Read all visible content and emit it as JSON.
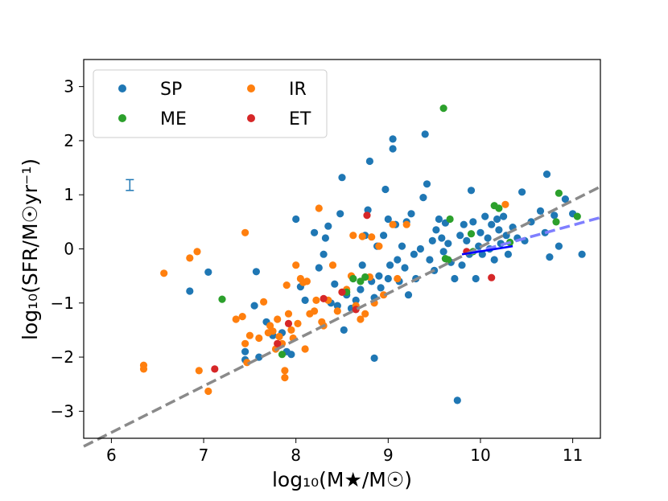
{
  "chart_data": {
    "type": "scatter",
    "xlabel": "log₁₀(M★/M☉)",
    "ylabel": "log₁₀(SFR/M☉yr⁻¹)",
    "xlim": [
      5.7,
      11.3
    ],
    "ylim": [
      -3.5,
      3.5
    ],
    "xticks": [
      6,
      7,
      8,
      9,
      10,
      11
    ],
    "yticks": [
      -3,
      -2,
      -1,
      0,
      1,
      2,
      3
    ],
    "grid": false,
    "legend_position": "top-left",
    "series": [
      {
        "name": "SP",
        "color": "#1f77b4",
        "points": [
          [
            6.85,
            -0.78
          ],
          [
            7.05,
            -0.43
          ],
          [
            7.45,
            -1.9
          ],
          [
            7.45,
            -2.05
          ],
          [
            7.55,
            -1.05
          ],
          [
            7.57,
            -0.42
          ],
          [
            7.6,
            -2.0
          ],
          [
            7.68,
            -1.35
          ],
          [
            7.75,
            -1.6
          ],
          [
            7.85,
            -1.55
          ],
          [
            7.9,
            -1.9
          ],
          [
            7.95,
            -1.95
          ],
          [
            8.0,
            0.55
          ],
          [
            8.05,
            -0.7
          ],
          [
            8.1,
            -0.95
          ],
          [
            8.2,
            0.3
          ],
          [
            8.25,
            -0.35
          ],
          [
            8.3,
            -0.1
          ],
          [
            8.32,
            0.2
          ],
          [
            8.35,
            0.42
          ],
          [
            8.38,
            -1.0
          ],
          [
            8.42,
            -0.65
          ],
          [
            8.45,
            -1.05
          ],
          [
            8.48,
            0.65
          ],
          [
            8.5,
            1.32
          ],
          [
            8.52,
            -1.5
          ],
          [
            8.55,
            -0.85
          ],
          [
            8.6,
            -1.1
          ],
          [
            8.62,
            -0.55
          ],
          [
            8.65,
            -0.95
          ],
          [
            8.7,
            -0.75
          ],
          [
            8.72,
            -0.3
          ],
          [
            8.75,
            0.25
          ],
          [
            8.78,
            0.72
          ],
          [
            8.8,
            1.62
          ],
          [
            8.82,
            -0.6
          ],
          [
            8.85,
            -0.9
          ],
          [
            8.85,
            -2.02
          ],
          [
            8.88,
            0.05
          ],
          [
            8.9,
            -0.5
          ],
          [
            8.92,
            -0.72
          ],
          [
            8.95,
            0.25
          ],
          [
            8.97,
            1.1
          ],
          [
            9.0,
            0.55
          ],
          [
            9.0,
            -0.55
          ],
          [
            9.02,
            -0.3
          ],
          [
            9.05,
            2.03
          ],
          [
            9.05,
            1.85
          ],
          [
            9.08,
            0.45
          ],
          [
            9.1,
            -0.2
          ],
          [
            9.12,
            -0.6
          ],
          [
            9.15,
            0.05
          ],
          [
            9.18,
            -0.35
          ],
          [
            9.2,
            0.5
          ],
          [
            9.22,
            -0.85
          ],
          [
            9.25,
            0.65
          ],
          [
            9.28,
            -0.1
          ],
          [
            9.3,
            -0.55
          ],
          [
            9.35,
            0.0
          ],
          [
            9.38,
            0.95
          ],
          [
            9.4,
            2.12
          ],
          [
            9.42,
            1.2
          ],
          [
            9.45,
            -0.2
          ],
          [
            9.48,
            0.15
          ],
          [
            9.5,
            -0.4
          ],
          [
            9.52,
            0.35
          ],
          [
            9.55,
            0.55
          ],
          [
            9.58,
            0.2
          ],
          [
            9.6,
            -0.05
          ],
          [
            9.62,
            0.48
          ],
          [
            9.65,
            0.1
          ],
          [
            9.68,
            -0.25
          ],
          [
            9.72,
            -0.55
          ],
          [
            9.75,
            -2.8
          ],
          [
            9.78,
            0.25
          ],
          [
            9.8,
            -0.3
          ],
          [
            9.82,
            0.45
          ],
          [
            9.85,
            0.15
          ],
          [
            9.88,
            -0.1
          ],
          [
            9.9,
            1.08
          ],
          [
            9.92,
            0.5
          ],
          [
            9.95,
            -0.55
          ],
          [
            9.98,
            0.05
          ],
          [
            10.0,
            0.3
          ],
          [
            10.02,
            -0.1
          ],
          [
            10.05,
            0.6
          ],
          [
            10.08,
            0.2
          ],
          [
            10.1,
            0.0
          ],
          [
            10.12,
            0.45
          ],
          [
            10.15,
            -0.2
          ],
          [
            10.18,
            0.55
          ],
          [
            10.2,
            0.35
          ],
          [
            10.22,
            0.1
          ],
          [
            10.25,
            0.6
          ],
          [
            10.28,
            0.25
          ],
          [
            10.3,
            -0.1
          ],
          [
            10.35,
            0.4
          ],
          [
            10.4,
            0.2
          ],
          [
            10.45,
            1.05
          ],
          [
            10.48,
            0.15
          ],
          [
            10.55,
            0.5
          ],
          [
            10.65,
            0.7
          ],
          [
            10.7,
            0.3
          ],
          [
            10.72,
            1.38
          ],
          [
            10.75,
            -0.15
          ],
          [
            10.8,
            0.62
          ],
          [
            10.85,
            0.05
          ],
          [
            10.92,
            0.92
          ],
          [
            11.0,
            0.65
          ],
          [
            11.1,
            -0.1
          ]
        ]
      },
      {
        "name": "IR",
        "color": "#ff7f0e",
        "points": [
          [
            6.35,
            -2.15
          ],
          [
            6.35,
            -2.22
          ],
          [
            6.57,
            -0.45
          ],
          [
            6.85,
            -0.17
          ],
          [
            6.93,
            -0.05
          ],
          [
            6.95,
            -2.25
          ],
          [
            7.05,
            -2.63
          ],
          [
            7.35,
            -1.3
          ],
          [
            7.42,
            -1.25
          ],
          [
            7.45,
            0.3
          ],
          [
            7.45,
            -1.75
          ],
          [
            7.47,
            -2.1
          ],
          [
            7.5,
            -1.6
          ],
          [
            7.6,
            -1.65
          ],
          [
            7.65,
            -0.98
          ],
          [
            7.7,
            -1.55
          ],
          [
            7.72,
            -1.42
          ],
          [
            7.75,
            -1.52
          ],
          [
            7.78,
            -1.85
          ],
          [
            7.8,
            -1.3
          ],
          [
            7.82,
            -1.62
          ],
          [
            7.85,
            -1.75
          ],
          [
            7.88,
            -2.38
          ],
          [
            7.88,
            -2.25
          ],
          [
            7.9,
            -0.67
          ],
          [
            7.92,
            -1.2
          ],
          [
            7.95,
            -1.5
          ],
          [
            7.97,
            -1.65
          ],
          [
            8.0,
            -0.3
          ],
          [
            8.02,
            -1.38
          ],
          [
            8.05,
            -0.55
          ],
          [
            8.08,
            -0.62
          ],
          [
            8.1,
            -1.85
          ],
          [
            8.12,
            -0.6
          ],
          [
            8.15,
            -1.2
          ],
          [
            8.2,
            -1.15
          ],
          [
            8.22,
            -0.95
          ],
          [
            8.25,
            0.75
          ],
          [
            8.28,
            -1.35
          ],
          [
            8.3,
            -1.42
          ],
          [
            8.35,
            -0.95
          ],
          [
            8.4,
            -0.3
          ],
          [
            8.45,
            -1.15
          ],
          [
            8.5,
            -0.8
          ],
          [
            8.55,
            -0.75
          ],
          [
            8.6,
            -0.5
          ],
          [
            8.62,
            0.25
          ],
          [
            8.65,
            -1.05
          ],
          [
            8.7,
            -1.3
          ],
          [
            8.72,
            0.23
          ],
          [
            8.75,
            -1.2
          ],
          [
            8.8,
            -0.52
          ],
          [
            8.82,
            0.22
          ],
          [
            8.85,
            -1.0
          ],
          [
            8.9,
            0.05
          ],
          [
            8.95,
            -0.85
          ],
          [
            9.05,
            0.45
          ],
          [
            9.1,
            -0.55
          ],
          [
            9.2,
            0.45
          ],
          [
            10.27,
            0.82
          ]
        ]
      },
      {
        "name": "ME",
        "color": "#2ca02c",
        "points": [
          [
            7.2,
            -0.93
          ],
          [
            7.85,
            -1.95
          ],
          [
            8.55,
            -0.8
          ],
          [
            8.62,
            -0.55
          ],
          [
            8.7,
            -0.6
          ],
          [
            8.75,
            -0.52
          ],
          [
            9.6,
            2.6
          ],
          [
            9.62,
            -0.18
          ],
          [
            9.65,
            -0.2
          ],
          [
            9.67,
            0.55
          ],
          [
            9.9,
            0.28
          ],
          [
            9.92,
            -0.05
          ],
          [
            10.15,
            0.8
          ],
          [
            10.2,
            0.75
          ],
          [
            10.32,
            0.12
          ],
          [
            10.82,
            0.5
          ],
          [
            10.85,
            1.03
          ],
          [
            11.05,
            0.6
          ]
        ]
      },
      {
        "name": "ET",
        "color": "#d62728",
        "points": [
          [
            7.12,
            -2.22
          ],
          [
            7.8,
            -1.75
          ],
          [
            7.92,
            -1.38
          ],
          [
            8.3,
            -0.92
          ],
          [
            8.5,
            -0.8
          ],
          [
            8.65,
            -1.12
          ],
          [
            8.77,
            0.62
          ],
          [
            9.85,
            -0.05
          ],
          [
            10.12,
            -0.53
          ]
        ]
      }
    ],
    "lines": [
      {
        "label": "",
        "color": "#8a8a8a",
        "dash": "dashed",
        "x": [
          5.7,
          11.3
        ],
        "y": [
          -3.65,
          1.15
        ]
      },
      {
        "label": "",
        "color": "#7f7fff",
        "dash": "dashed",
        "x": [
          9.9,
          11.3
        ],
        "y": [
          -0.08,
          0.58
        ]
      },
      {
        "label": "",
        "color": "#0000ff",
        "dash": "solid",
        "x": [
          9.8,
          10.35
        ],
        "y": [
          -0.1,
          0.05
        ]
      }
    ],
    "error_bar": {
      "color": "#1f77b4",
      "x": 6.2,
      "y": 1.18,
      "yerr": 0.1
    }
  }
}
